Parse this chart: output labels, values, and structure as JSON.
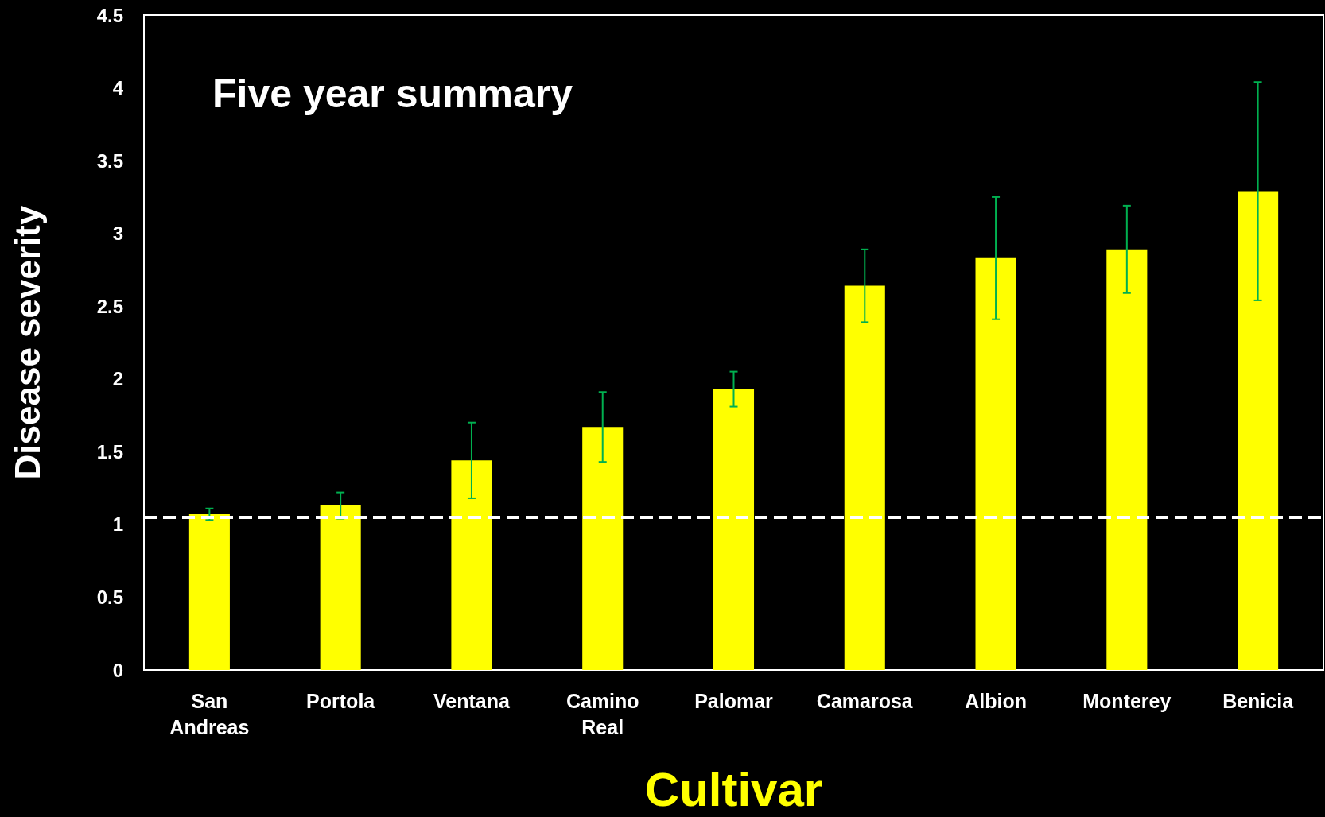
{
  "chart_data": {
    "type": "bar",
    "title": "Five year summary",
    "xlabel": "Cultivar",
    "ylabel": "Disease severity",
    "categories": [
      "San Andreas",
      "Portola",
      "Ventana",
      "Camino Real",
      "Palomar",
      "Camarosa",
      "Albion",
      "Monterey",
      "Benicia"
    ],
    "values": [
      1.07,
      1.13,
      1.44,
      1.67,
      1.93,
      2.64,
      2.83,
      2.89,
      3.29
    ],
    "errors": [
      0.04,
      0.09,
      0.26,
      0.24,
      0.12,
      0.25,
      0.42,
      0.3,
      0.75
    ],
    "color": "#ffff00",
    "ylim": [
      0,
      4.5
    ],
    "yticks": [
      0,
      0.5,
      1,
      1.5,
      2,
      2.5,
      3,
      3.5,
      4,
      4.5
    ],
    "grid": false,
    "ref_lines": [
      {
        "axis": "y",
        "value": 1.05,
        "color": "#ffffff",
        "line_style": "dashed"
      }
    ]
  }
}
